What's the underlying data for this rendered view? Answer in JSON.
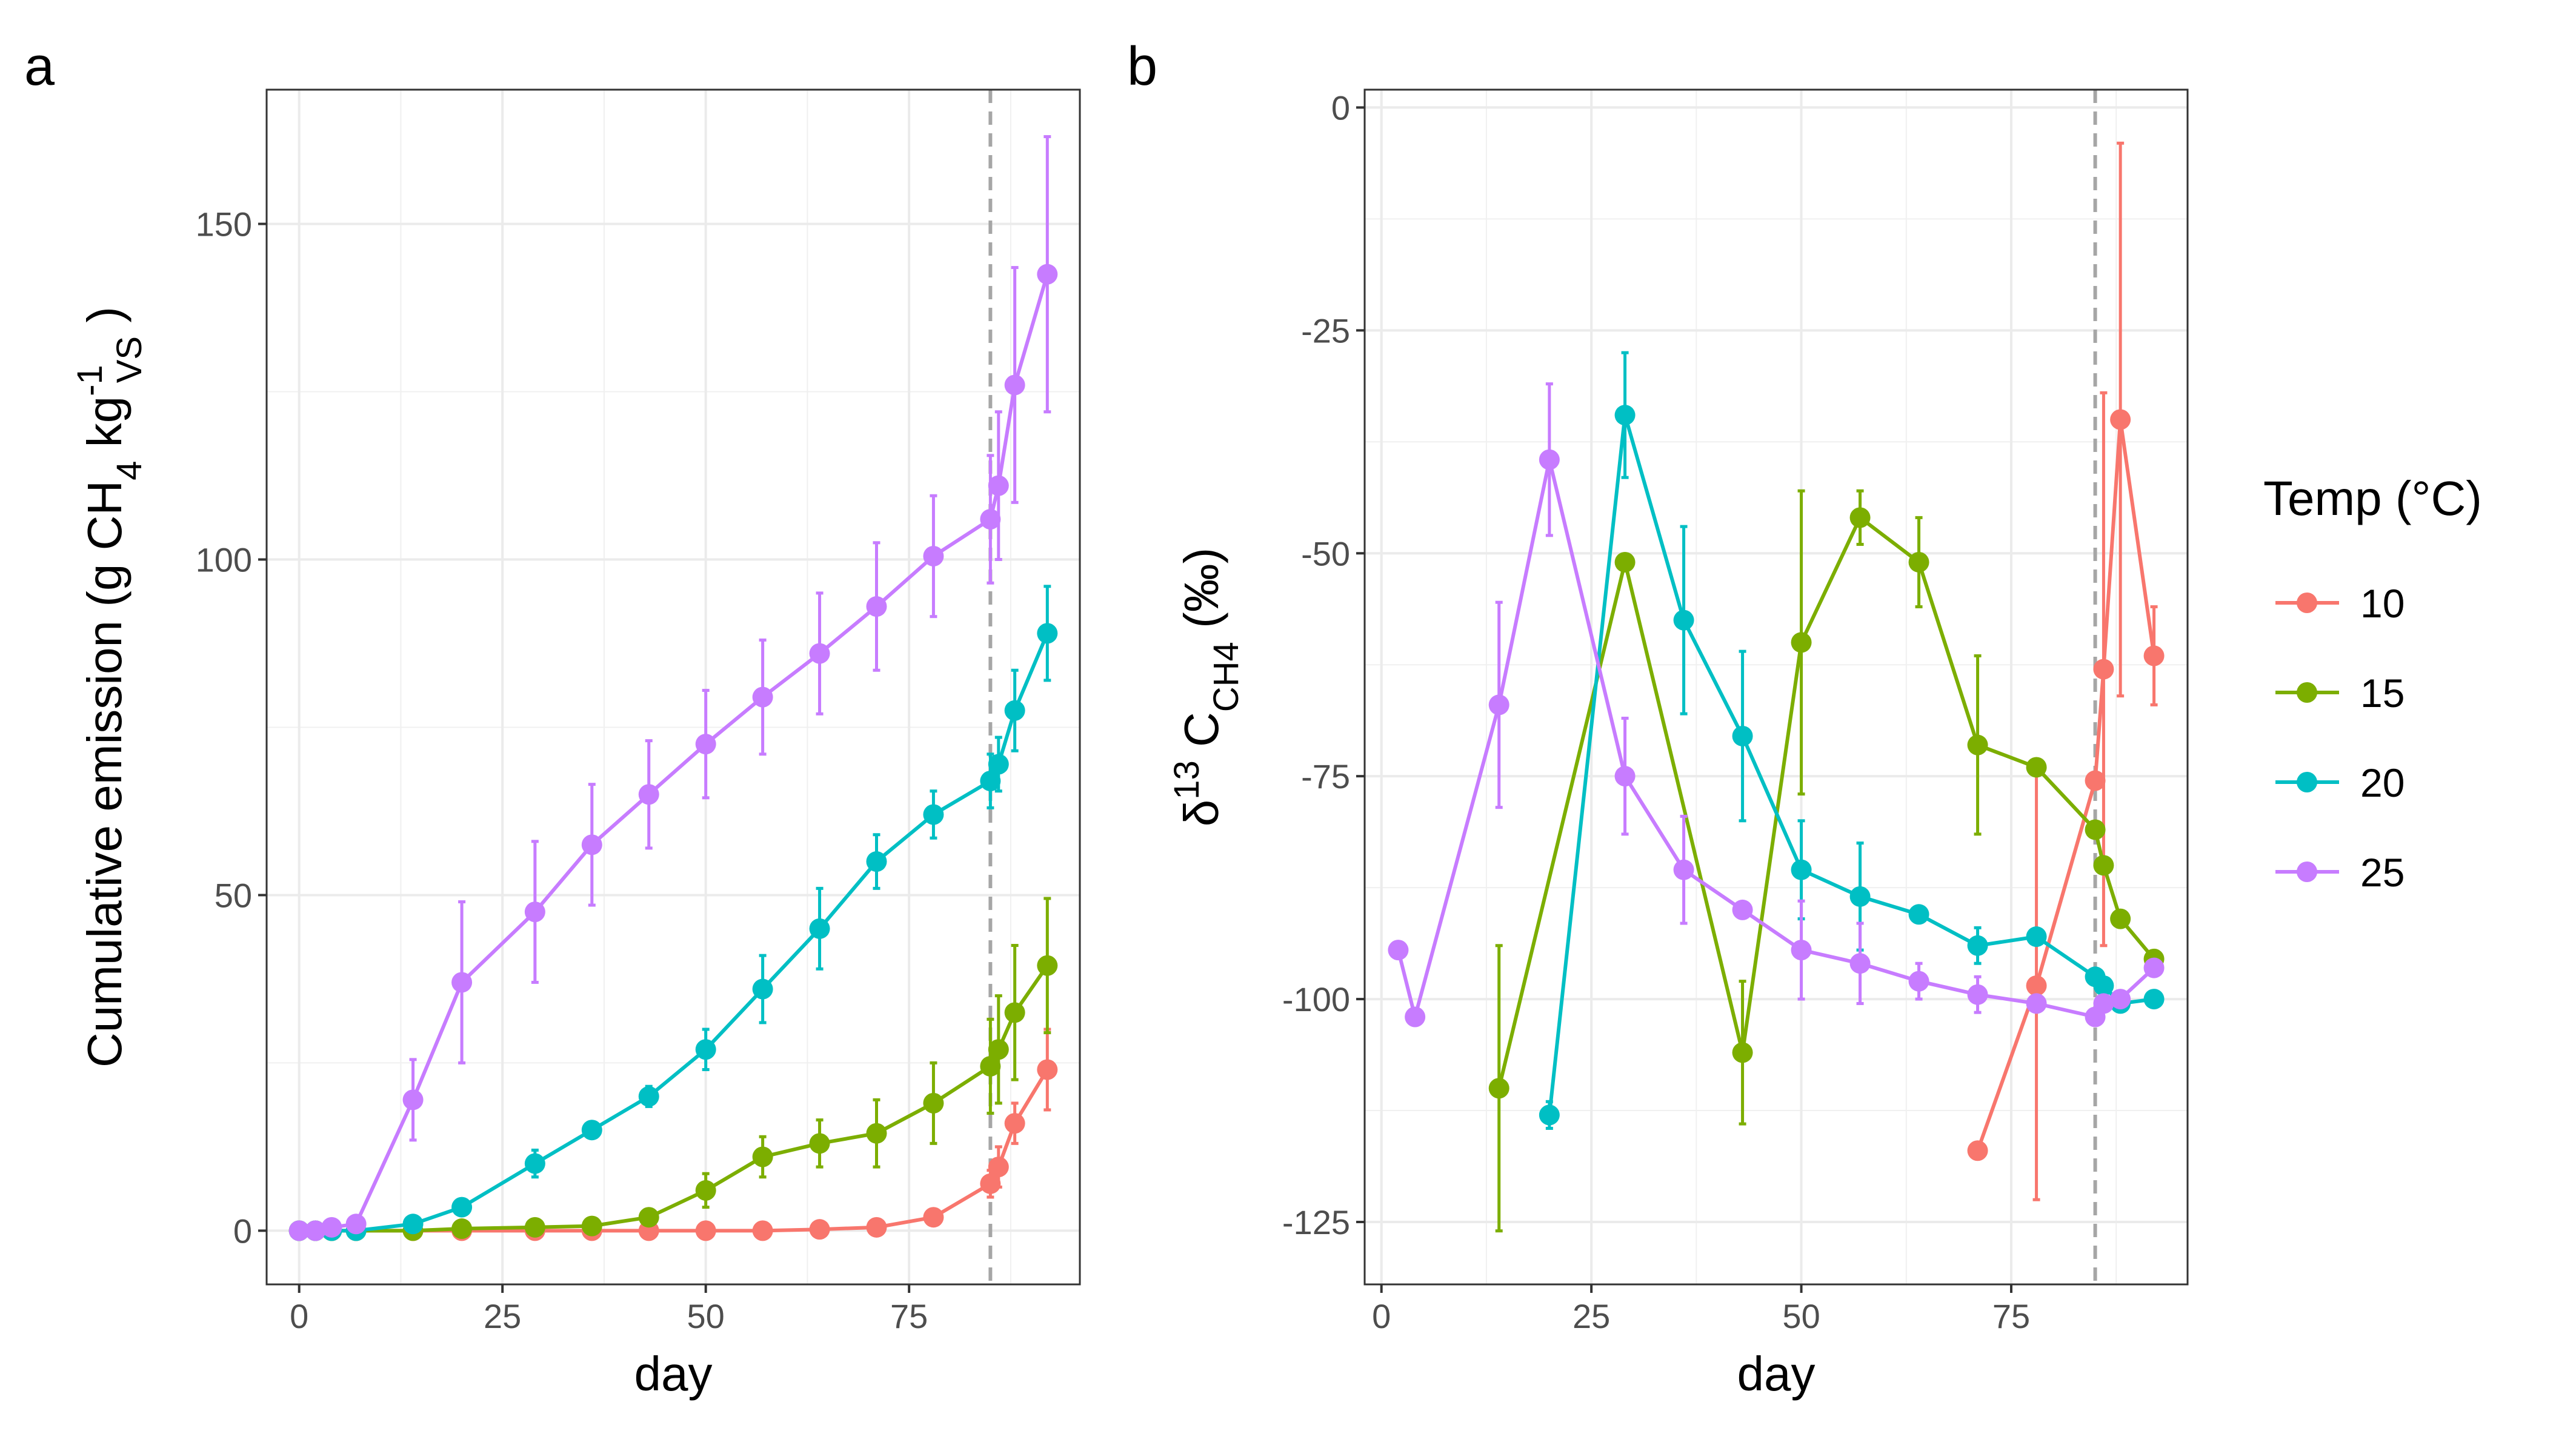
{
  "legend": {
    "title_prefix": "Temp (",
    "title_unit_symbol": "°C",
    "title_suffix": ")",
    "placement": "right",
    "entries": [
      {
        "label": "10",
        "color": "#F8766D"
      },
      {
        "label": "15",
        "color": "#7CAE00"
      },
      {
        "label": "20",
        "color": "#00BFC4"
      },
      {
        "label": "25",
        "color": "#C77CFF"
      }
    ]
  },
  "chart_data": [
    {
      "panel": "a",
      "type": "line",
      "xlabel": "day",
      "ylabel_parts": {
        "pre": "Cumulative emission (g CH",
        "sub4": "4",
        "mid": " kg",
        "sup": "-1",
        "subvs": "VS",
        "post": " )"
      },
      "xlim": [
        -4,
        96
      ],
      "ylim": [
        -8,
        170
      ],
      "xticks": [
        0,
        25,
        50,
        75
      ],
      "xtick_labels": [
        "0",
        "25",
        "50",
        "75"
      ],
      "yticks": [
        0,
        50,
        100,
        150
      ],
      "ytick_labels": [
        "0",
        "50",
        "100",
        "150"
      ],
      "grid": true,
      "vline_x": 85,
      "series": [
        {
          "name": "10",
          "color": "#F8766D",
          "x": [
            0,
            2,
            4,
            7,
            14,
            20,
            29,
            36,
            43,
            50,
            57,
            64,
            71,
            78,
            85,
            86,
            88,
            92
          ],
          "y": [
            0,
            0,
            0,
            0,
            0,
            0,
            0,
            0,
            0,
            0,
            0,
            0.2,
            0.5,
            2,
            7,
            9.5,
            16,
            24
          ],
          "err": [
            0,
            0,
            0,
            0,
            0,
            0,
            0,
            0,
            0,
            0,
            0,
            0,
            0,
            1,
            2,
            3,
            3,
            6
          ]
        },
        {
          "name": "15",
          "color": "#7CAE00",
          "x": [
            0,
            2,
            4,
            7,
            14,
            20,
            29,
            36,
            43,
            50,
            57,
            64,
            71,
            78,
            85,
            86,
            88,
            92
          ],
          "y": [
            0,
            0,
            0,
            0,
            0,
            0.3,
            0.5,
            0.7,
            2,
            6,
            11,
            13,
            14.5,
            19,
            24.5,
            27,
            32.5,
            39.5
          ],
          "err": [
            0,
            0,
            0,
            0,
            0,
            0,
            0,
            0.5,
            1,
            2.5,
            3,
            3.5,
            5,
            6,
            7,
            8,
            10,
            10
          ]
        },
        {
          "name": "20",
          "color": "#00BFC4",
          "x": [
            0,
            2,
            4,
            7,
            14,
            20,
            29,
            36,
            43,
            50,
            57,
            64,
            71,
            78,
            85,
            86,
            88,
            92
          ],
          "y": [
            0,
            0,
            0,
            0,
            1,
            3.5,
            10,
            15,
            20,
            27,
            36,
            45,
            55,
            62,
            67,
            69.5,
            77.5,
            89
          ],
          "err": [
            0,
            0,
            0,
            0,
            0.5,
            1,
            2,
            1,
            1.5,
            3,
            5,
            6,
            4,
            3.5,
            4,
            4,
            6,
            7
          ]
        },
        {
          "name": "25",
          "color": "#C77CFF",
          "x": [
            0,
            2,
            4,
            7,
            14,
            20,
            29,
            36,
            43,
            50,
            57,
            64,
            71,
            78,
            85,
            86,
            88,
            92
          ],
          "y": [
            0,
            0,
            0.5,
            1,
            19.5,
            37,
            47.5,
            57.5,
            65,
            72.5,
            79.5,
            86,
            93,
            100.5,
            106,
            111,
            126,
            142.5
          ],
          "err": [
            0,
            0,
            0,
            0,
            6,
            12,
            10.5,
            9,
            8,
            8,
            8.5,
            9,
            9.5,
            9,
            9.5,
            11,
            17.5,
            20.5
          ]
        }
      ]
    },
    {
      "panel": "b",
      "type": "line",
      "xlabel": "day",
      "ylabel_parts": {
        "delta": "δ",
        "sup": "13",
        "c": " C",
        "sub": "CH4",
        "post": " (‰)"
      },
      "xlim": [
        -2,
        96
      ],
      "ylim": [
        -132,
        2
      ],
      "xticks": [
        0,
        25,
        50,
        75
      ],
      "xtick_labels": [
        "0",
        "25",
        "50",
        "75"
      ],
      "yticks": [
        0,
        -25,
        -50,
        -75,
        -100,
        -125
      ],
      "ytick_labels": [
        "0",
        "-25",
        "-50",
        "-75",
        "-100",
        "-125"
      ],
      "grid": true,
      "vline_x": 85,
      "series": [
        {
          "name": "10",
          "color": "#F8766D",
          "x": [
            71,
            78,
            85,
            86,
            88,
            92
          ],
          "y": [
            -117,
            -98.5,
            -75.5,
            -63,
            -35,
            -61.5
          ],
          "err": [
            0,
            24,
            0,
            31,
            31,
            5.5
          ]
        },
        {
          "name": "15",
          "color": "#7CAE00",
          "x": [
            14,
            29,
            43,
            50,
            57,
            64,
            71,
            78,
            85,
            86,
            88,
            92
          ],
          "y": [
            -110,
            -51,
            -106,
            -60,
            -46,
            -51,
            -71.5,
            -74,
            -81,
            -85,
            -91,
            -95.5
          ],
          "err": [
            16,
            0,
            8,
            17,
            3,
            5,
            10,
            0,
            0,
            0,
            0,
            0
          ]
        },
        {
          "name": "20",
          "color": "#00BFC4",
          "x": [
            20,
            29,
            36,
            43,
            50,
            57,
            64,
            71,
            78,
            85,
            86,
            88,
            92
          ],
          "y": [
            -113,
            -34.5,
            -57.5,
            -70.5,
            -85.5,
            -88.5,
            -90.5,
            -94,
            -93,
            -97.5,
            -98.5,
            -100.5,
            -100
          ],
          "err": [
            1.5,
            7,
            10.5,
            9.5,
            5.5,
            6,
            0,
            2,
            0,
            0,
            0,
            0,
            0
          ]
        },
        {
          "name": "25",
          "color": "#C77CFF",
          "x": [
            2,
            4,
            14,
            20,
            29,
            36,
            43,
            50,
            57,
            64,
            71,
            78,
            85,
            86,
            88,
            92
          ],
          "y": [
            -94.5,
            -102,
            -67,
            -39.5,
            -75,
            -85.5,
            -90,
            -94.5,
            -96,
            -98,
            -99.5,
            -100.5,
            -102,
            -100.5,
            -100,
            -96.5
          ],
          "err": [
            0,
            0,
            11.5,
            8.5,
            6.5,
            6,
            0,
            5.5,
            4.5,
            2,
            2,
            0,
            0,
            0,
            0,
            0
          ]
        }
      ]
    }
  ]
}
